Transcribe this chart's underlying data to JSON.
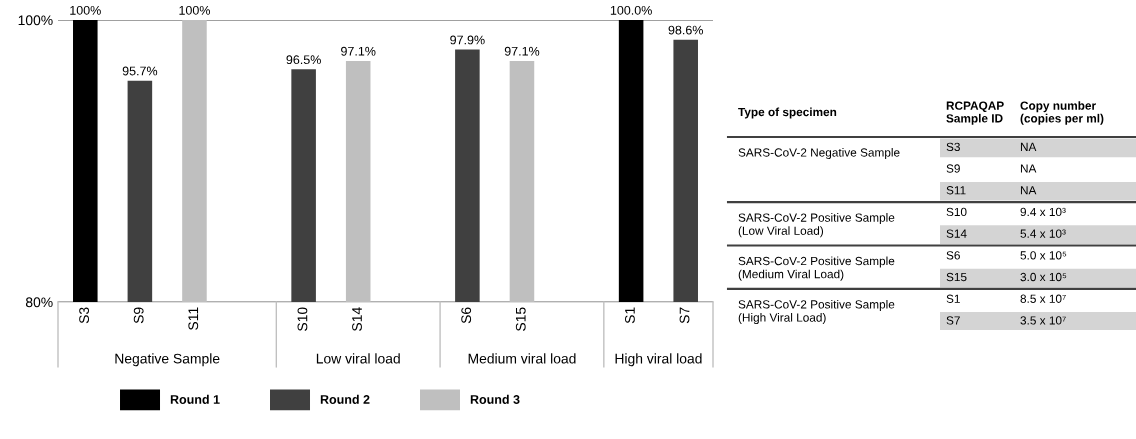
{
  "chart_data": [
    {
      "type": "bar",
      "categories": [
        "S3",
        "S9",
        "S11",
        null,
        "S10",
        "S14",
        null,
        "S6",
        "S15",
        null,
        "S1",
        "S7"
      ],
      "series": [
        {
          "name": "Round 1",
          "color": "#000000",
          "values": [
            100,
            null,
            null,
            null,
            null,
            null,
            null,
            null,
            null,
            null,
            100,
            null
          ],
          "value_labels": [
            "100%",
            null,
            null,
            null,
            null,
            null,
            null,
            null,
            null,
            null,
            "100.0%",
            null
          ]
        },
        {
          "name": "Round 2",
          "color": "#404040",
          "values": [
            null,
            95.7,
            null,
            null,
            96.5,
            null,
            null,
            97.9,
            null,
            null,
            null,
            98.6
          ],
          "value_labels": [
            null,
            "95.7%",
            null,
            null,
            "96.5%",
            null,
            null,
            "97.9%",
            null,
            null,
            null,
            "98.6%"
          ]
        },
        {
          "name": "Round 3",
          "color": "#bfbfbf",
          "values": [
            null,
            null,
            100,
            null,
            null,
            97.1,
            null,
            null,
            97.1,
            null,
            null,
            null
          ],
          "value_labels": [
            null,
            null,
            "100%",
            null,
            null,
            "97.1%",
            null,
            null,
            "97.1%",
            null,
            null,
            null
          ]
        }
      ],
      "ylim": [
        80,
        100
      ],
      "yticks": [
        {
          "value": 80,
          "label": "80%"
        },
        {
          "value": 100,
          "label": "100%"
        }
      ],
      "grid": "y",
      "legend": "bottom",
      "annotations": [
        "Negative Sample",
        "Low viral load",
        "Medium viral load",
        "High viral load"
      ]
    },
    {
      "type": "other",
      "annotations": [
        "Type of specimen",
        "RCPAQAP\nSample ID",
        "Copy number\n(copies per ml)",
        "SARS-CoV-2 Negative Sample",
        "S3",
        "NA",
        "S9",
        "NA",
        "S11",
        "NA",
        "SARS-CoV-2 Positive Sample\n(Low Viral Load)",
        "S10",
        "9.4 x 10³",
        "S14",
        "5.4 x 10³",
        "SARS-CoV-2 Positive Sample\n(Medium Viral Load)",
        "S6",
        "5.0 x 10⁵",
        "S15",
        "3.0 x 10⁵",
        "SARS-CoV-2 Positive Sample\n(High Viral Load)",
        "S1",
        "8.5 x 10⁷",
        "S7",
        "3.5 x 10⁷"
      ]
    }
  ]
}
